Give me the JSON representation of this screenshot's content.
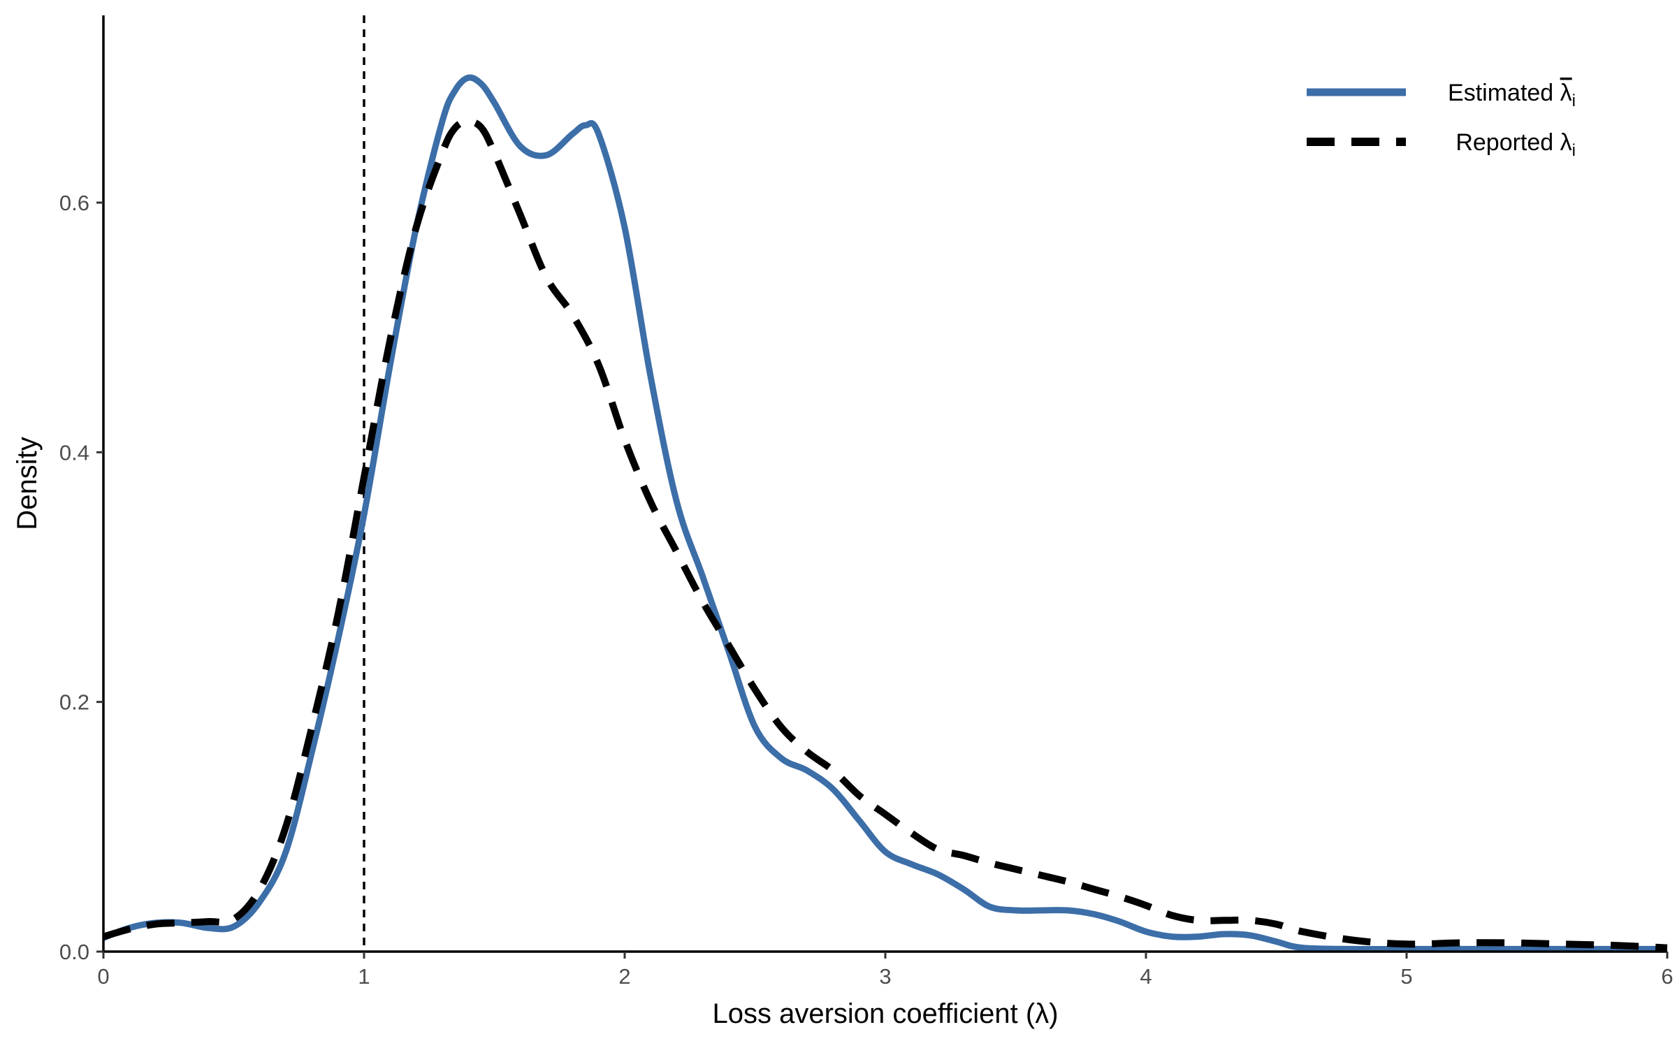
{
  "chart_data": {
    "type": "line",
    "title": "",
    "xlabel": "Loss aversion coefficient (λ)",
    "ylabel": "Density",
    "xlim": [
      0,
      6
    ],
    "ylim": [
      0,
      0.75
    ],
    "x_ticks": [
      "0",
      "1",
      "2",
      "3",
      "4",
      "5",
      "6"
    ],
    "y_ticks": [
      "0.0",
      "0.2",
      "0.4",
      "0.6"
    ],
    "grid": false,
    "legend_position": "top-right",
    "reference_line": {
      "x": 1,
      "style": "dashed",
      "color": "#000000"
    },
    "series": [
      {
        "name": "Estimated λ̅ᵢ",
        "legend_main": "Estimated ",
        "legend_symbol": "λ",
        "legend_sub": "i",
        "legend_overline": true,
        "color": "#3c6ea8",
        "style": "solid",
        "x": [
          0,
          0.1,
          0.2,
          0.3,
          0.4,
          0.5,
          0.6,
          0.7,
          0.8,
          0.9,
          1.0,
          1.1,
          1.2,
          1.3,
          1.35,
          1.4,
          1.45,
          1.5,
          1.6,
          1.7,
          1.8,
          1.85,
          1.9,
          2.0,
          2.1,
          2.2,
          2.3,
          2.4,
          2.5,
          2.6,
          2.7,
          2.8,
          2.9,
          3.0,
          3.1,
          3.2,
          3.3,
          3.4,
          3.5,
          3.6,
          3.7,
          3.8,
          3.9,
          4.0,
          4.1,
          4.2,
          4.3,
          4.4,
          4.5,
          4.6,
          4.8,
          5.0,
          5.5,
          6.0
        ],
        "y": [
          0.011,
          0.019,
          0.023,
          0.023,
          0.019,
          0.02,
          0.04,
          0.08,
          0.16,
          0.25,
          0.35,
          0.47,
          0.58,
          0.665,
          0.69,
          0.7,
          0.695,
          0.68,
          0.645,
          0.638,
          0.655,
          0.662,
          0.655,
          0.58,
          0.46,
          0.36,
          0.3,
          0.24,
          0.18,
          0.155,
          0.145,
          0.13,
          0.105,
          0.08,
          0.07,
          0.062,
          0.05,
          0.036,
          0.033,
          0.033,
          0.033,
          0.03,
          0.024,
          0.016,
          0.012,
          0.012,
          0.014,
          0.013,
          0.008,
          0.003,
          0.002,
          0.002,
          0.002,
          0.002
        ]
      },
      {
        "name": "Reported λᵢ",
        "legend_main": "Reported ",
        "legend_symbol": "λ",
        "legend_sub": "i",
        "legend_overline": false,
        "color": "#000000",
        "style": "dashed",
        "x": [
          0,
          0.1,
          0.2,
          0.3,
          0.4,
          0.5,
          0.6,
          0.7,
          0.8,
          0.9,
          1.0,
          1.1,
          1.2,
          1.3,
          1.35,
          1.4,
          1.45,
          1.5,
          1.6,
          1.7,
          1.8,
          1.9,
          2.0,
          2.1,
          2.2,
          2.3,
          2.4,
          2.5,
          2.6,
          2.7,
          2.8,
          2.9,
          3.0,
          3.1,
          3.2,
          3.3,
          3.4,
          3.5,
          3.6,
          3.7,
          3.8,
          3.9,
          4.0,
          4.1,
          4.2,
          4.3,
          4.4,
          4.5,
          4.6,
          4.8,
          5.0,
          5.2,
          5.4,
          5.6,
          5.8,
          6.0
        ],
        "y": [
          0.012,
          0.018,
          0.022,
          0.023,
          0.024,
          0.026,
          0.05,
          0.1,
          0.18,
          0.27,
          0.38,
          0.49,
          0.58,
          0.64,
          0.66,
          0.665,
          0.66,
          0.64,
          0.59,
          0.54,
          0.51,
          0.47,
          0.41,
          0.36,
          0.32,
          0.28,
          0.245,
          0.21,
          0.18,
          0.16,
          0.145,
          0.125,
          0.11,
          0.095,
          0.082,
          0.077,
          0.071,
          0.066,
          0.061,
          0.056,
          0.05,
          0.044,
          0.037,
          0.029,
          0.025,
          0.025,
          0.025,
          0.022,
          0.016,
          0.009,
          0.006,
          0.007,
          0.007,
          0.006,
          0.005,
          0.003
        ]
      }
    ]
  }
}
